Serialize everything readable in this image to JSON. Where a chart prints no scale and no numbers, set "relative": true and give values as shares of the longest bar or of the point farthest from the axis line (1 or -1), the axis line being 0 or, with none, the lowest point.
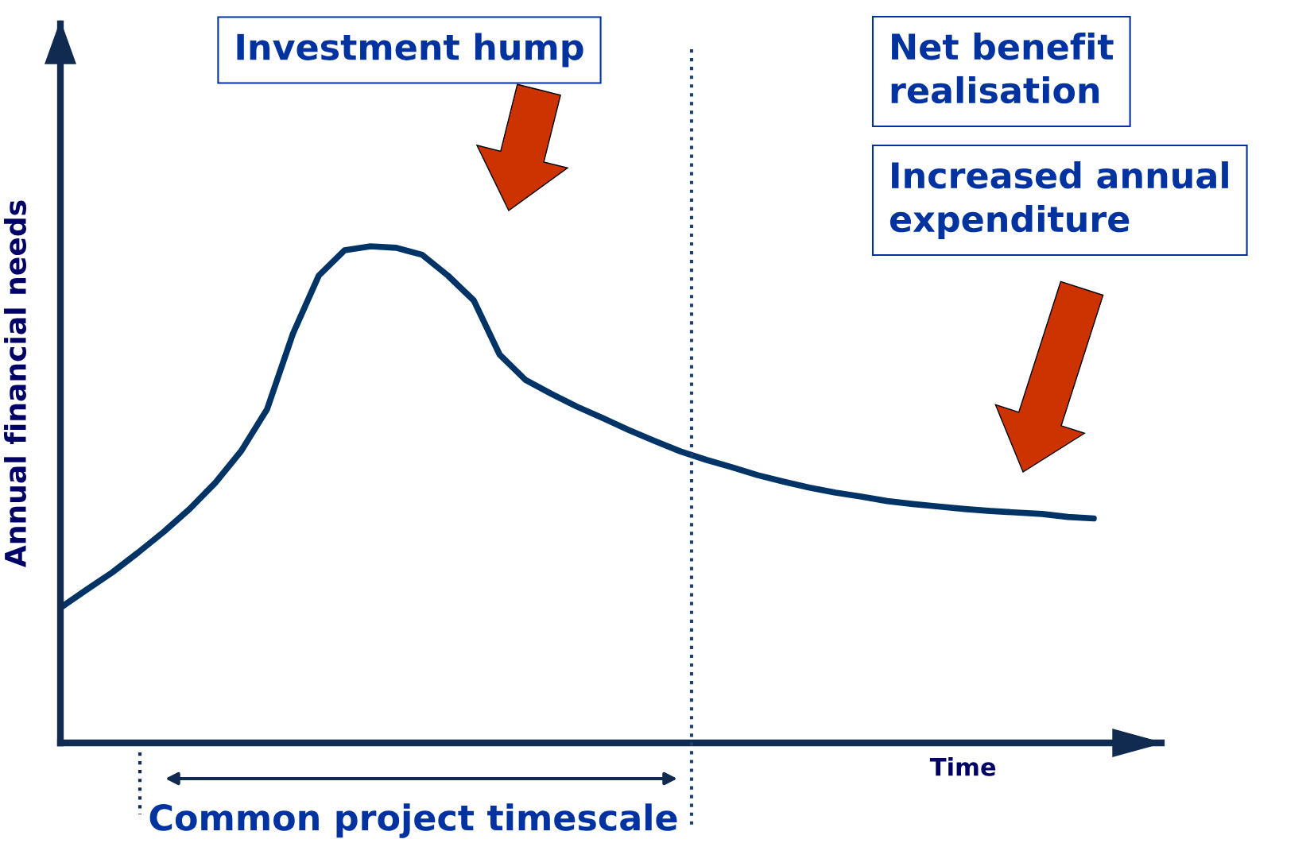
{
  "chart_data": {
    "type": "line",
    "relative": true,
    "ylabel": "Annual financial needs",
    "xlabel": "Time",
    "categories": [
      null,
      null,
      null,
      null,
      null,
      null,
      null,
      null,
      null,
      null,
      null,
      null,
      null,
      null,
      null,
      null,
      null,
      null,
      null,
      null,
      null,
      null,
      null,
      null,
      null,
      null,
      null,
      null,
      null,
      null,
      null,
      null,
      null,
      null,
      null,
      null,
      null,
      null,
      null,
      null,
      null
    ],
    "series": [
      {
        "color": "#003366",
        "values": [
          0.272,
          0.308,
          0.343,
          0.383,
          0.425,
          0.471,
          0.524,
          0.588,
          0.672,
          0.824,
          0.941,
          0.992,
          1,
          0.997,
          0.983,
          0.941,
          0.891,
          0.782,
          0.731,
          0.703,
          0.677,
          0.654,
          0.63,
          0.608,
          0.587,
          0.57,
          0.555,
          0.539,
          0.526,
          0.514,
          0.504,
          0.496,
          0.487,
          0.481,
          0.476,
          0.471,
          0.467,
          0.464,
          0.461,
          0.455,
          0.452
        ]
      }
    ],
    "annotations": [
      "Investment hump",
      "Net benefit\nrealisation",
      "Increased annual\nexpenditure",
      "Common project timescale"
    ],
    "marker": "none",
    "line_style": "solid"
  }
}
